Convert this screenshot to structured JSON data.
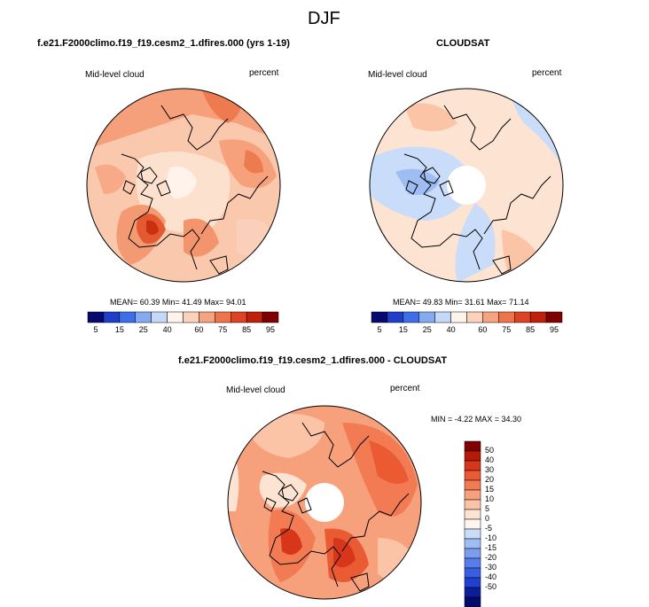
{
  "season": "DJF",
  "colors": {
    "seq": [
      "#08086e",
      "#1f3fc9",
      "#3f6fe6",
      "#86aaf0",
      "#c4d8f8",
      "#fff4ec",
      "#fbd3bd",
      "#f6a47f",
      "#ee744b",
      "#dc4424",
      "#c01f0c",
      "#7f0000"
    ],
    "div": [
      "#7f0000",
      "#b41a06",
      "#d7361a",
      "#ea5a33",
      "#f27b54",
      "#f7a07c",
      "#fbc4a6",
      "#fde3d2",
      "#fff5ee",
      "#c9dcf9",
      "#9dbdf3",
      "#7b9df0",
      "#587deb",
      "#3a5ee1",
      "#2040cf",
      "#0c1d9a",
      "#000a6a"
    ]
  },
  "chart_data": [
    {
      "type": "heatmap",
      "projection": "north-polar-stereographic",
      "title": "f.e21.F2000climo.f19_f19.cesm2_1.dfires.000 (yrs 1-19)",
      "left_label": "Mid-level cloud",
      "right_label": "percent",
      "stats": {
        "mean_label": "MEAN=",
        "mean": "60.39",
        "min_label": "Min=",
        "min": "41.49",
        "max_label": "Max=",
        "max": "94.01"
      },
      "colorbar": {
        "orientation": "horizontal",
        "ticks": [
          "5",
          "15",
          "25",
          "40",
          "60",
          "75",
          "85",
          "95"
        ]
      }
    },
    {
      "type": "heatmap",
      "projection": "north-polar-stereographic",
      "title": "CLOUDSAT",
      "left_label": "Mid-level cloud",
      "right_label": "percent",
      "stats": {
        "mean_label": "MEAN=",
        "mean": "49.83",
        "min_label": "Min=",
        "min": "31.61",
        "max_label": "Max=",
        "max": "71.14"
      },
      "colorbar": {
        "orientation": "horizontal",
        "ticks": [
          "5",
          "15",
          "25",
          "40",
          "60",
          "75",
          "85",
          "95"
        ]
      }
    },
    {
      "type": "heatmap",
      "projection": "north-polar-stereographic",
      "title": "f.e21.F2000climo.f19_f19.cesm2_1.dfires.000 - CLOUDSAT",
      "left_label": "Mid-level cloud",
      "right_label": "percent",
      "stats_text": "MIN = -4.22 MAX = 34.30",
      "colorbar": {
        "orientation": "vertical",
        "ticks": [
          "50",
          "40",
          "30",
          "20",
          "15",
          "10",
          "5",
          "0",
          "-5",
          "-10",
          "-15",
          "-20",
          "-30",
          "-40",
          "-50"
        ]
      }
    }
  ]
}
